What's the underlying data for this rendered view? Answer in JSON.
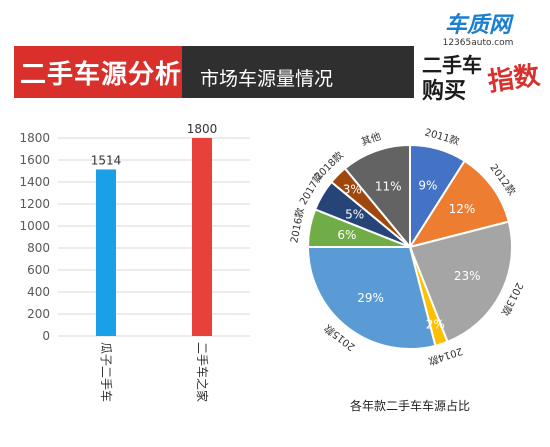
{
  "header": {
    "title": "二手车源分析",
    "subtitle": "市场车源量情况"
  },
  "logo": {
    "brand": "车质网",
    "url": "12365auto.com",
    "line1": "二手车",
    "line2": "购买",
    "badge": "指数"
  },
  "colors": {
    "red": "#d9302c",
    "dark": "#2f2f2f",
    "bar_blue": "#1aa0e6",
    "bar_red": "#e8413c"
  },
  "chart_data": [
    {
      "type": "bar",
      "categories": [
        "瓜子二手车",
        "二手车之家"
      ],
      "values": [
        1514,
        1800
      ],
      "ylim": [
        0,
        1800
      ],
      "yticks": [
        0,
        200,
        400,
        600,
        800,
        1000,
        1200,
        1400,
        1600,
        1800
      ],
      "colors": [
        "#1aa0e6",
        "#e8413c"
      ]
    },
    {
      "type": "pie",
      "title": "各年款二手车车源占比",
      "slices": [
        {
          "label": "2011款",
          "value": 9,
          "text": "9%",
          "color": "#4472c4"
        },
        {
          "label": "2012款",
          "value": 12,
          "text": "12%",
          "color": "#ed7d31"
        },
        {
          "label": "2013款",
          "value": 23,
          "text": "23%",
          "color": "#a5a5a5"
        },
        {
          "label": "2014款",
          "value": 2,
          "text": "2%",
          "color": "#ffc000"
        },
        {
          "label": "2015款",
          "value": 29,
          "text": "29%",
          "color": "#5b9bd5"
        },
        {
          "label": "2016款",
          "value": 6,
          "text": "6%",
          "color": "#70ad47"
        },
        {
          "label": "2017款",
          "value": 5,
          "text": "5%",
          "color": "#264478"
        },
        {
          "label": "2018款",
          "value": 3,
          "text": "3%",
          "color": "#9e480e"
        },
        {
          "label": "其他",
          "value": 11,
          "text": "11%",
          "color": "#636363"
        }
      ]
    }
  ]
}
